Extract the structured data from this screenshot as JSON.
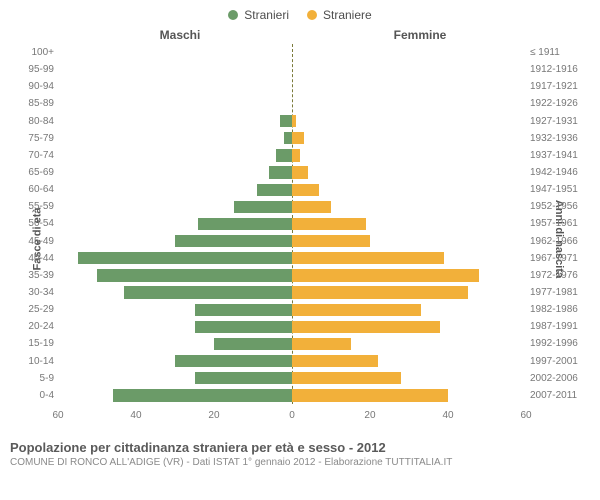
{
  "legend": {
    "male": {
      "label": "Stranieri",
      "color": "#6b9b68"
    },
    "female": {
      "label": "Straniere",
      "color": "#f2b03a"
    }
  },
  "headers": {
    "male": "Maschi",
    "female": "Femmine"
  },
  "axis_titles": {
    "left": "Fasce di età",
    "right": "Anni di nascita"
  },
  "xaxis": {
    "max": 60,
    "ticks_left": [
      60,
      40,
      20,
      0
    ],
    "ticks_right": [
      20,
      40,
      60
    ]
  },
  "colors": {
    "male_bar": "#6b9b68",
    "female_bar": "#f2b03a",
    "background": "#ffffff",
    "center_line": "#7a7a3a",
    "tick_text": "#777777"
  },
  "footer": {
    "title": "Popolazione per cittadinanza straniera per età e sesso - 2012",
    "subtitle": "COMUNE DI RONCO ALL'ADIGE (VR) - Dati ISTAT 1° gennaio 2012 - Elaborazione TUTTITALIA.IT"
  },
  "rows": [
    {
      "age": "100+",
      "birth": "≤ 1911",
      "m": 0,
      "f": 0
    },
    {
      "age": "95-99",
      "birth": "1912-1916",
      "m": 0,
      "f": 0
    },
    {
      "age": "90-94",
      "birth": "1917-1921",
      "m": 0,
      "f": 0
    },
    {
      "age": "85-89",
      "birth": "1922-1926",
      "m": 0,
      "f": 0
    },
    {
      "age": "80-84",
      "birth": "1927-1931",
      "m": 3,
      "f": 1
    },
    {
      "age": "75-79",
      "birth": "1932-1936",
      "m": 2,
      "f": 3
    },
    {
      "age": "70-74",
      "birth": "1937-1941",
      "m": 4,
      "f": 2
    },
    {
      "age": "65-69",
      "birth": "1942-1946",
      "m": 6,
      "f": 4
    },
    {
      "age": "60-64",
      "birth": "1947-1951",
      "m": 9,
      "f": 7
    },
    {
      "age": "55-59",
      "birth": "1952-1956",
      "m": 15,
      "f": 10
    },
    {
      "age": "50-54",
      "birth": "1957-1961",
      "m": 24,
      "f": 19
    },
    {
      "age": "45-49",
      "birth": "1962-1966",
      "m": 30,
      "f": 20
    },
    {
      "age": "40-44",
      "birth": "1967-1971",
      "m": 55,
      "f": 39
    },
    {
      "age": "35-39",
      "birth": "1972-1976",
      "m": 50,
      "f": 48
    },
    {
      "age": "30-34",
      "birth": "1977-1981",
      "m": 43,
      "f": 45
    },
    {
      "age": "25-29",
      "birth": "1982-1986",
      "m": 25,
      "f": 33
    },
    {
      "age": "20-24",
      "birth": "1987-1991",
      "m": 25,
      "f": 38
    },
    {
      "age": "15-19",
      "birth": "1992-1996",
      "m": 20,
      "f": 15
    },
    {
      "age": "10-14",
      "birth": "1997-2001",
      "m": 30,
      "f": 22
    },
    {
      "age": "5-9",
      "birth": "2002-2006",
      "m": 25,
      "f": 28
    },
    {
      "age": "0-4",
      "birth": "2007-2011",
      "m": 46,
      "f": 40
    }
  ]
}
